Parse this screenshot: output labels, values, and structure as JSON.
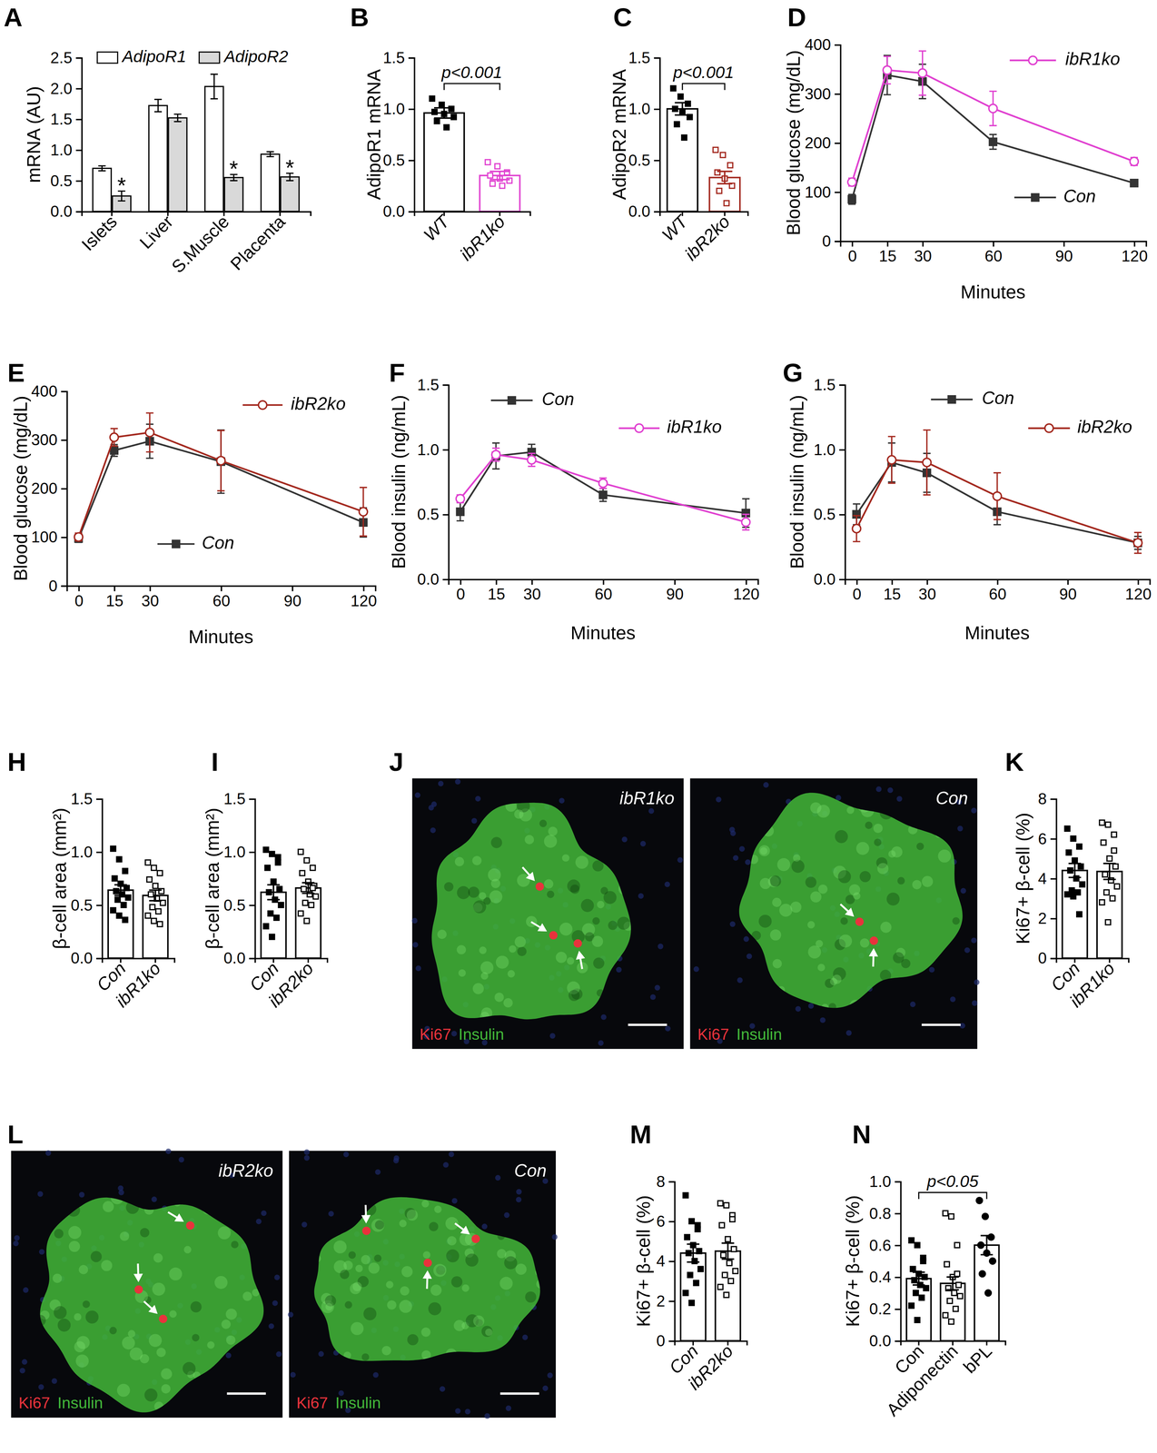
{
  "chart_data": [
    {
      "panel": "A",
      "type": "bar",
      "categories": [
        "Islets",
        "Liver",
        "S.Muscle",
        "Placenta"
      ],
      "series": [
        {
          "name": "AdipoR1",
          "color": "#ffffff",
          "values": [
            0.7,
            1.72,
            2.03,
            0.93
          ],
          "errors": [
            0.04,
            0.1,
            0.2,
            0.04
          ]
        },
        {
          "name": "AdipoR2",
          "color": "#d9d9d9",
          "values": [
            0.25,
            1.52,
            0.55,
            0.56
          ],
          "errors": [
            0.08,
            0.06,
            0.05,
            0.06
          ],
          "annotations": [
            "*",
            null,
            "*",
            "*"
          ]
        }
      ],
      "ylim": [
        0,
        2.5
      ],
      "yticks": [
        {
          "value": 0,
          "label": "0.0"
        },
        {
          "value": 0.5,
          "label": "0.5"
        },
        {
          "value": 1,
          "label": "1.0"
        },
        {
          "value": 1.5,
          "label": "1.5"
        },
        {
          "value": 2,
          "label": "2.0"
        },
        {
          "value": 2.5,
          "label": "2.5"
        }
      ],
      "y_label": "mRNA (AU)",
      "legend": "top"
    },
    {
      "panel": "B",
      "type": "bar",
      "categories": [
        "WT",
        "ibR1ko"
      ],
      "values": [
        0.96,
        0.35
      ],
      "errors": [
        0.05,
        0.04
      ],
      "points": [
        [
          1.1,
          1.04,
          1.0,
          0.97,
          0.95,
          0.92,
          0.88,
          0.82
        ],
        [
          0.48,
          0.44,
          0.38,
          0.35,
          0.32,
          0.3,
          0.27,
          0.25
        ]
      ],
      "colors": [
        "#000000",
        "#e040d0"
      ],
      "ylim": [
        0,
        1.5
      ],
      "yticks": [
        {
          "value": 0,
          "label": "0.0"
        },
        {
          "value": 0.5,
          "label": "0.5"
        },
        {
          "value": 1,
          "label": "1.0"
        },
        {
          "value": 1.5,
          "label": "1.5"
        }
      ],
      "y_label": "AdipoR1 mRNA",
      "annotations": [
        {
          "text": "p<0.001",
          "between": [
            "WT",
            "ibR1ko"
          ]
        }
      ]
    },
    {
      "panel": "C",
      "type": "bar",
      "categories": [
        "WT",
        "ibR2ko"
      ],
      "values": [
        1.0,
        0.33
      ],
      "errors": [
        0.06,
        0.06
      ],
      "points": [
        [
          1.2,
          1.12,
          1.05,
          1.0,
          0.97,
          0.92,
          0.85,
          0.72
        ],
        [
          0.6,
          0.55,
          0.45,
          0.38,
          0.32,
          0.25,
          0.2,
          0.08
        ]
      ],
      "colors": [
        "#000000",
        "#a3281e"
      ],
      "ylim": [
        0,
        1.5
      ],
      "yticks": [
        {
          "value": 0,
          "label": "0.0"
        },
        {
          "value": 0.5,
          "label": "0.5"
        },
        {
          "value": 1,
          "label": "1.0"
        },
        {
          "value": 1.5,
          "label": "1.5"
        }
      ],
      "y_label": "AdipoR2 mRNA",
      "annotations": [
        {
          "text": "p<0.001",
          "between": [
            "WT",
            "ibR2ko"
          ]
        }
      ]
    },
    {
      "panel": "D",
      "type": "line",
      "x": [
        0,
        15,
        30,
        60,
        120
      ],
      "series": [
        {
          "name": "Con",
          "color": "#333333",
          "marker": "square",
          "values": [
            85,
            338,
            325,
            202,
            118
          ],
          "errors": [
            10,
            40,
            35,
            15,
            5
          ]
        },
        {
          "name": "ibR1ko",
          "color": "#e040d0",
          "marker": "circle-open",
          "values": [
            120,
            348,
            342,
            270,
            162
          ],
          "errors": [
            8,
            28,
            45,
            35,
            8
          ]
        }
      ],
      "xlim": [
        -5,
        125
      ],
      "xticks": [
        0,
        15,
        30,
        60,
        90,
        120
      ],
      "ylim": [
        0,
        400
      ],
      "yticks": [
        0,
        100,
        200,
        300,
        400
      ],
      "x_label": "Minutes",
      "y_label": "Blood glucose (mg/dL)"
    },
    {
      "panel": "E",
      "type": "line",
      "x": [
        0,
        15,
        30,
        60,
        120
      ],
      "series": [
        {
          "name": "Con",
          "color": "#333333",
          "marker": "square",
          "values": [
            97,
            278,
            297,
            255,
            130
          ],
          "errors": [
            8,
            12,
            35,
            65,
            30
          ]
        },
        {
          "name": "ibR2ko",
          "color": "#a3281e",
          "marker": "circle-open",
          "values": [
            100,
            305,
            315,
            257,
            152
          ],
          "errors": [
            8,
            18,
            40,
            62,
            50
          ]
        }
      ],
      "xlim": [
        -5,
        125
      ],
      "xticks": [
        0,
        15,
        30,
        60,
        90,
        120
      ],
      "ylim": [
        0,
        400
      ],
      "yticks": [
        0,
        100,
        200,
        300,
        400
      ],
      "x_label": "Minutes",
      "y_label": "Blood glucose (mg/dL)"
    },
    {
      "panel": "F",
      "type": "line",
      "x": [
        0,
        15,
        30,
        60,
        120
      ],
      "series": [
        {
          "name": "Con",
          "color": "#333333",
          "marker": "square",
          "values": [
            0.52,
            0.95,
            0.98,
            0.65,
            0.51
          ],
          "errors": [
            0.07,
            0.1,
            0.06,
            0.05,
            0.11
          ]
        },
        {
          "name": "ibR1ko",
          "color": "#e040d0",
          "marker": "circle-open",
          "values": [
            0.62,
            0.96,
            0.92,
            0.74,
            0.44
          ],
          "errors": [
            0.03,
            0.05,
            0.05,
            0.04,
            0.06
          ]
        }
      ],
      "xlim": [
        -5,
        125
      ],
      "xticks": [
        0,
        15,
        30,
        60,
        90,
        120
      ],
      "ylim": [
        0,
        1.5
      ],
      "yticks": [
        {
          "value": 0,
          "label": "0.0"
        },
        {
          "value": 0.5,
          "label": "0.5"
        },
        {
          "value": 1,
          "label": "1.0"
        },
        {
          "value": 1.5,
          "label": "1.5"
        }
      ],
      "x_label": "Minutes",
      "y_label": "Blood insulin (ng/mL)"
    },
    {
      "panel": "G",
      "type": "line",
      "x": [
        0,
        15,
        30,
        60,
        120
      ],
      "series": [
        {
          "name": "Con",
          "color": "#333333",
          "marker": "square",
          "values": [
            0.5,
            0.9,
            0.82,
            0.52,
            0.28
          ],
          "errors": [
            0.08,
            0.15,
            0.15,
            0.1,
            0.05
          ]
        },
        {
          "name": "ibR2ko",
          "color": "#a3281e",
          "marker": "circle-open",
          "values": [
            0.39,
            0.92,
            0.9,
            0.64,
            0.28
          ],
          "errors": [
            0.1,
            0.18,
            0.25,
            0.18,
            0.08
          ]
        }
      ],
      "xlim": [
        -5,
        125
      ],
      "xticks": [
        0,
        15,
        30,
        60,
        90,
        120
      ],
      "ylim": [
        0,
        1.5
      ],
      "yticks": [
        {
          "value": 0,
          "label": "0.0"
        },
        {
          "value": 0.5,
          "label": "0.5"
        },
        {
          "value": 1,
          "label": "1.0"
        },
        {
          "value": 1.5,
          "label": "1.5"
        }
      ],
      "x_label": "Minutes",
      "y_label": "Blood insulin (ng/mL)"
    },
    {
      "panel": "H",
      "type": "bar",
      "categories": [
        "Con",
        "ibR1ko"
      ],
      "values": [
        0.64,
        0.59
      ],
      "errors": [
        0.05,
        0.05
      ],
      "points": [
        [
          1.03,
          0.93,
          0.82,
          0.75,
          0.7,
          0.66,
          0.63,
          0.6,
          0.57,
          0.55,
          0.5,
          0.45,
          0.4,
          0.36
        ],
        [
          0.9,
          0.85,
          0.8,
          0.74,
          0.68,
          0.63,
          0.6,
          0.56,
          0.52,
          0.48,
          0.44,
          0.4,
          0.35,
          0.32
        ]
      ],
      "colors": [
        "#000000",
        "#000000"
      ],
      "ylim": [
        0,
        1.5
      ],
      "yticks": [
        {
          "value": 0,
          "label": "0.0"
        },
        {
          "value": 0.5,
          "label": "0.5"
        },
        {
          "value": 1,
          "label": "1.0"
        },
        {
          "value": 1.5,
          "label": "1.5"
        }
      ],
      "y_label": "β-cell area (mm²)"
    },
    {
      "panel": "I",
      "type": "bar",
      "categories": [
        "Con",
        "ibR2ko"
      ],
      "values": [
        0.62,
        0.66
      ],
      "errors": [
        0.07,
        0.05
      ],
      "points": [
        [
          1.02,
          0.98,
          0.9,
          0.85,
          0.72,
          0.65,
          0.62,
          0.55,
          0.5,
          0.42,
          0.38,
          0.3,
          0.2,
          0.95
        ],
        [
          1.0,
          0.92,
          0.85,
          0.8,
          0.72,
          0.68,
          0.65,
          0.6,
          0.58,
          0.52,
          0.5,
          0.42,
          0.35,
          0.66
        ]
      ],
      "colors": [
        "#000000",
        "#000000"
      ],
      "ylim": [
        0,
        1.5
      ],
      "yticks": [
        {
          "value": 0,
          "label": "0.0"
        },
        {
          "value": 0.5,
          "label": "0.5"
        },
        {
          "value": 1,
          "label": "1.0"
        },
        {
          "value": 1.5,
          "label": "1.5"
        }
      ],
      "y_label": "β-cell area (mm²)"
    },
    {
      "panel": "J",
      "type": "image",
      "images": [
        {
          "label": "ibR1ko"
        },
        {
          "label": "Con"
        }
      ],
      "stains": [
        {
          "name": "Ki67",
          "color": "#e8333c"
        },
        {
          "name": "Insulin",
          "color": "#43b83a"
        }
      ]
    },
    {
      "panel": "K",
      "type": "bar",
      "categories": [
        "Con",
        "ibR1ko"
      ],
      "values": [
        4.4,
        4.35
      ],
      "errors": [
        0.35,
        0.4
      ],
      "points": [
        [
          6.5,
          6.0,
          5.6,
          5.3,
          4.9,
          4.6,
          4.4,
          4.0,
          3.7,
          3.4,
          3.3,
          3.2,
          3.1,
          2.2
        ],
        [
          6.8,
          6.7,
          6.2,
          5.8,
          5.0,
          4.6,
          4.2,
          3.9,
          3.6,
          3.3,
          3.0,
          2.8,
          1.8,
          5.4
        ]
      ],
      "colors": [
        "#000000",
        "#000000"
      ],
      "ylim": [
        0,
        8
      ],
      "yticks": [
        0,
        2,
        4,
        6,
        8
      ],
      "y_label": "Ki67+ β-cell (%)"
    },
    {
      "panel": "L",
      "type": "image",
      "images": [
        {
          "label": "ibR2ko"
        },
        {
          "label": "Con"
        }
      ],
      "stains": [
        {
          "name": "Ki67",
          "color": "#e8333c"
        },
        {
          "name": "Insulin",
          "color": "#43b83a"
        }
      ]
    },
    {
      "panel": "M",
      "type": "bar",
      "categories": [
        "Con",
        "ibR2ko"
      ],
      "values": [
        4.4,
        4.5
      ],
      "errors": [
        0.45,
        0.4
      ],
      "points": [
        [
          7.3,
          6.0,
          5.8,
          5.2,
          4.8,
          4.5,
          4.4,
          4.0,
          3.6,
          3.3,
          2.9,
          2.4,
          1.9,
          5.6
        ],
        [
          6.9,
          6.8,
          6.3,
          5.8,
          5.1,
          4.6,
          4.3,
          3.9,
          3.5,
          3.3,
          3.0,
          2.7,
          2.3,
          6.1
        ]
      ],
      "colors": [
        "#000000",
        "#000000"
      ],
      "ylim": [
        0,
        8
      ],
      "yticks": [
        0,
        2,
        4,
        6,
        8
      ],
      "y_label": "Ki67+ β-cell (%)"
    },
    {
      "panel": "N",
      "type": "bar",
      "categories": [
        "Con",
        "Adiponectin",
        "bPL"
      ],
      "values": [
        0.39,
        0.36,
        0.6
      ],
      "errors": [
        0.04,
        0.04,
        0.06
      ],
      "points": [
        [
          0.63,
          0.6,
          0.52,
          0.45,
          0.42,
          0.4,
          0.38,
          0.35,
          0.33,
          0.3,
          0.27,
          0.22,
          0.13,
          0.5
        ],
        [
          0.8,
          0.78,
          0.6,
          0.48,
          0.4,
          0.35,
          0.33,
          0.3,
          0.28,
          0.25,
          0.2,
          0.16,
          0.12,
          0.42
        ],
        [
          0.88,
          0.78,
          0.65,
          0.6,
          0.55,
          0.5,
          0.42,
          0.3
        ]
      ],
      "colors": [
        "#000000",
        "#000000",
        "#000000"
      ],
      "ylim": [
        0,
        1
      ],
      "yticks": [
        {
          "value": 0,
          "label": "0.0"
        },
        {
          "value": 0.2,
          "label": "0.2"
        },
        {
          "value": 0.4,
          "label": "0.4"
        },
        {
          "value": 0.6,
          "label": "0.6"
        },
        {
          "value": 0.8,
          "label": "0.8"
        },
        {
          "value": 1,
          "label": "1.0"
        }
      ],
      "y_label": "Ki67+ β-cell (%)",
      "annotations": [
        {
          "text": "p<0.05",
          "between": [
            "Con",
            "bPL"
          ]
        }
      ]
    }
  ]
}
